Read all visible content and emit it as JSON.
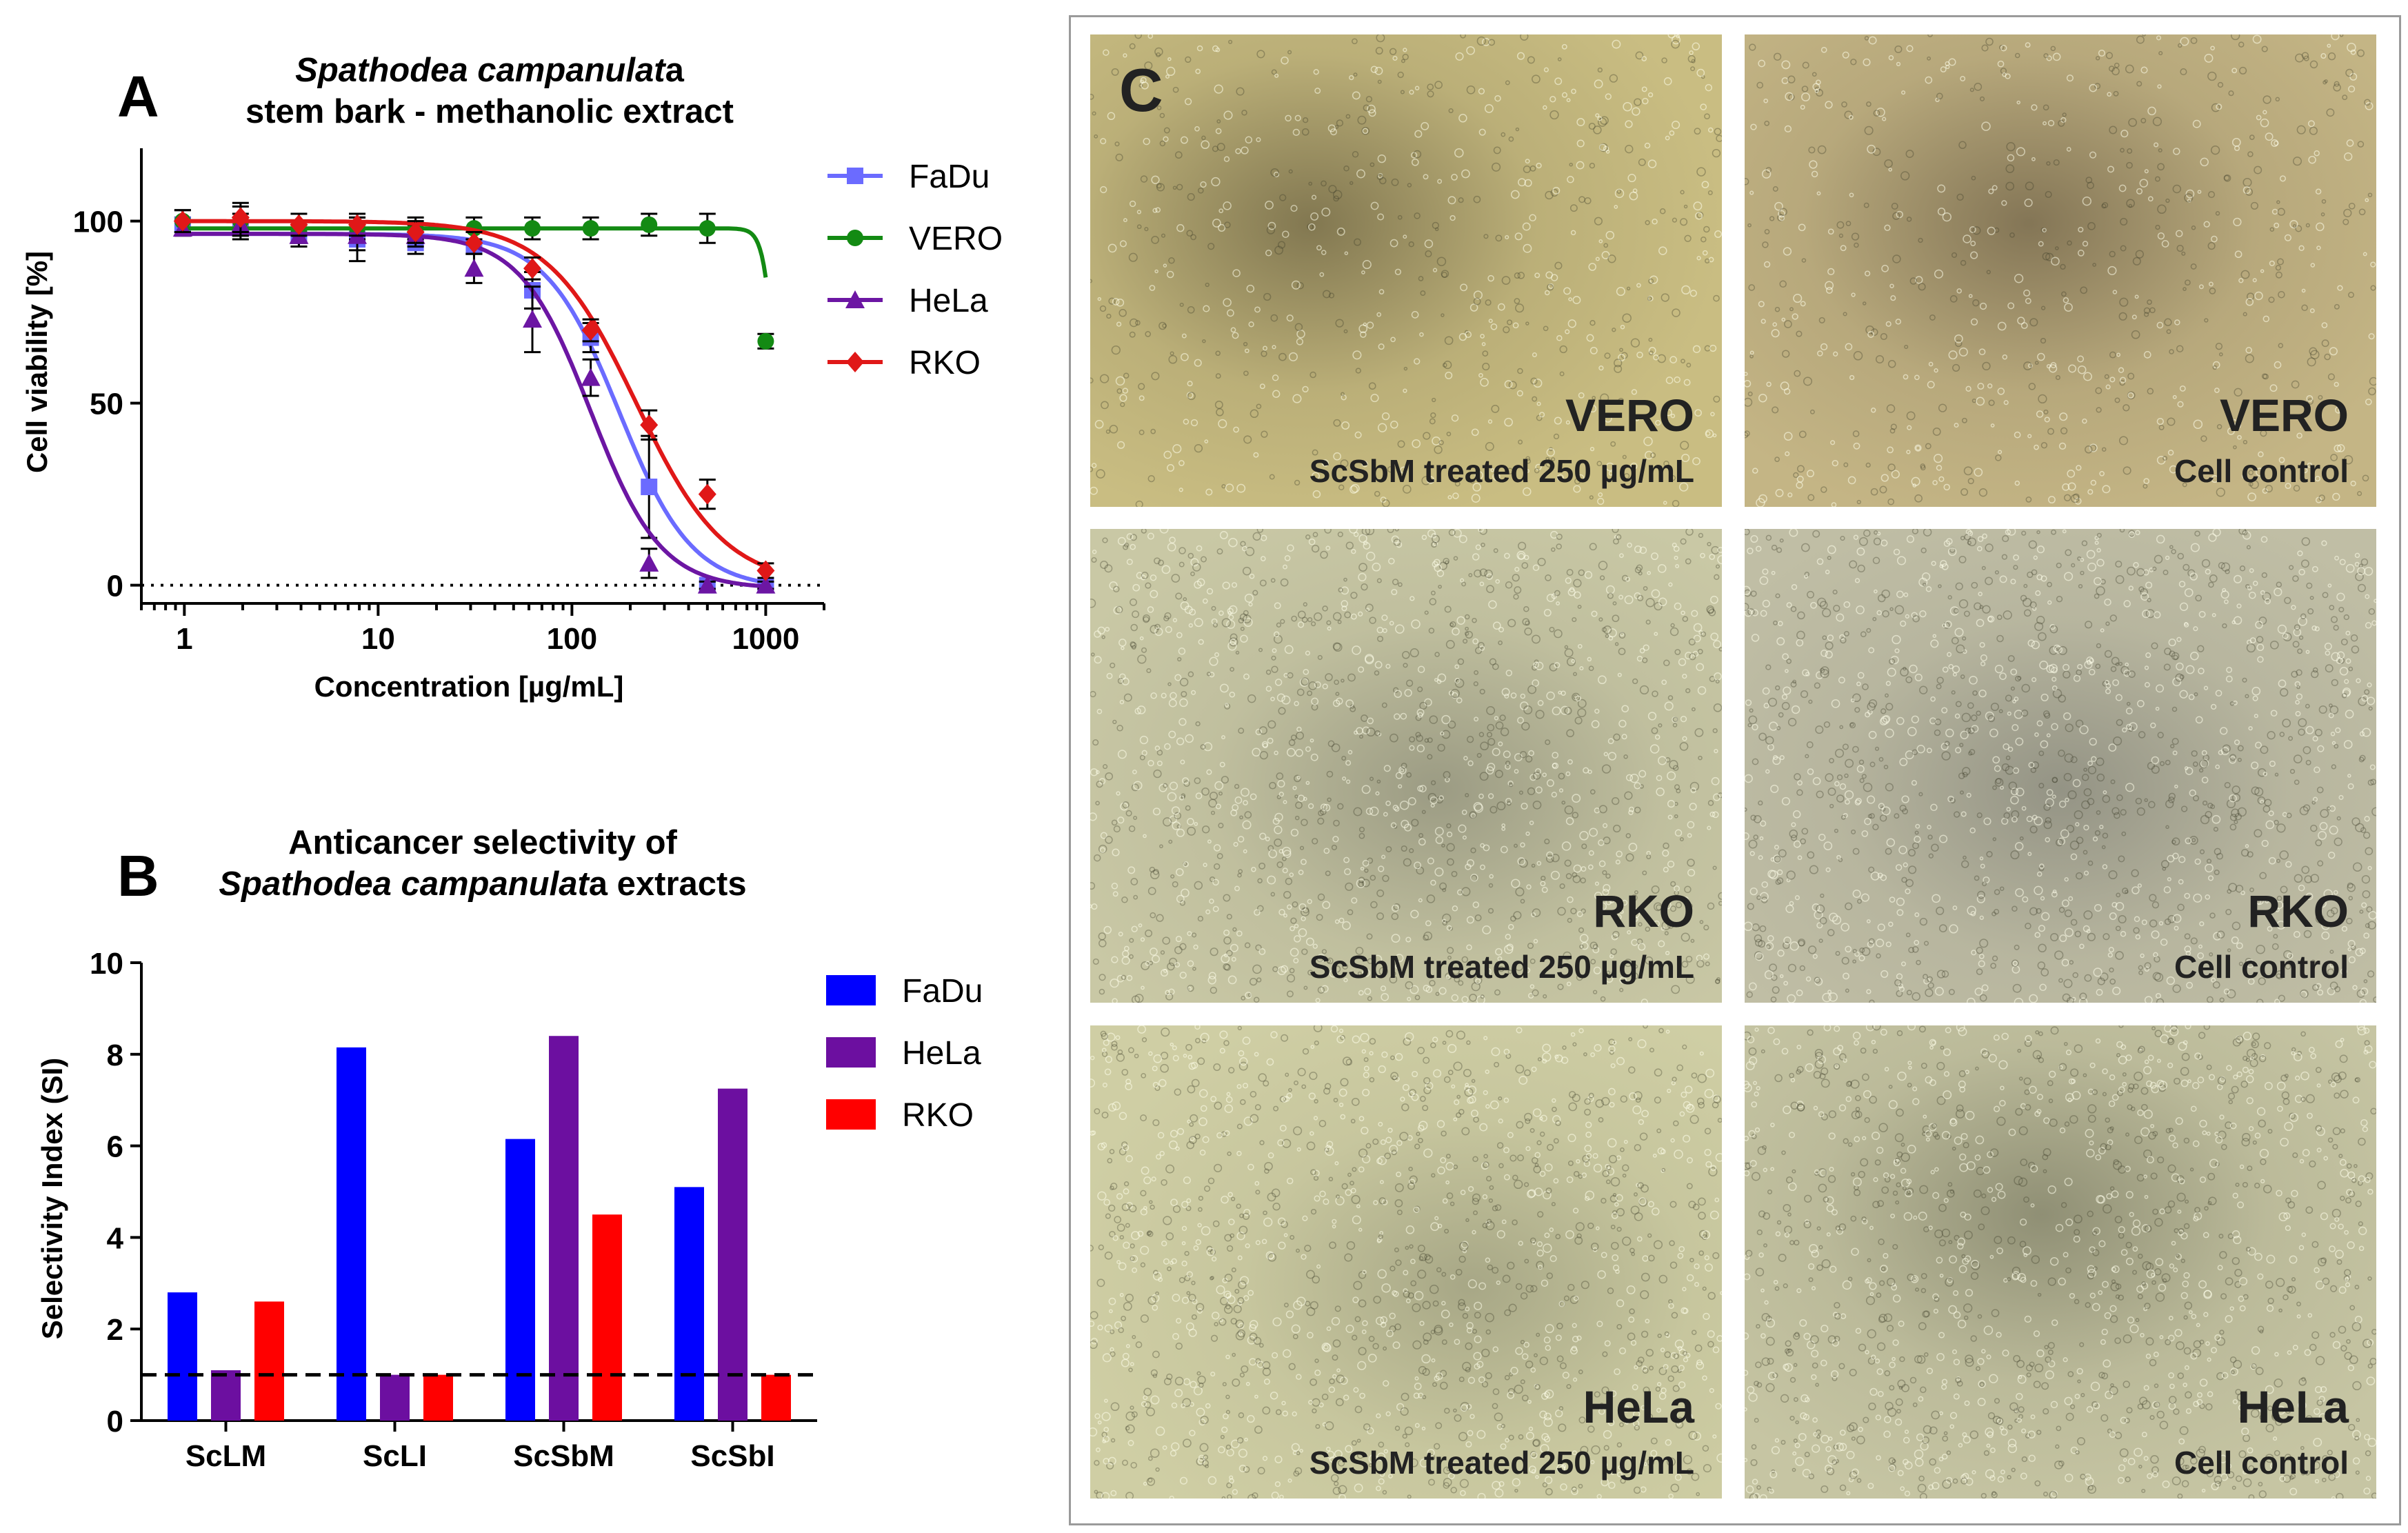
{
  "panel_a": {
    "letter": "A",
    "title_italic": "Spathodea campanulat",
    "title_tail": "a",
    "title_line2": "stem bark - methanolic extract"
  },
  "panel_b": {
    "letter": "B",
    "title_line1": "Anticancer selectivity of",
    "title_italic": "Spathodea campanulat",
    "title_tail": "a extracts"
  },
  "panel_c": {
    "letter": "C"
  },
  "chart_data": [
    {
      "type": "line",
      "xlabel": "Concentration [µg/mL]",
      "ylabel": "Cell viability [%]",
      "x_scale": "log",
      "xlim": [
        0.6,
        2000
      ],
      "ylim": [
        -5,
        120
      ],
      "x_ticks": [
        1,
        10,
        100,
        1000
      ],
      "x_tick_labels": [
        "1",
        "10",
        "100",
        "1000"
      ],
      "y_ticks": [
        0,
        50,
        100
      ],
      "y_tick_labels": [
        "0",
        "50",
        "100"
      ],
      "reference_line": 0,
      "legend_position": "right",
      "x": [
        0.98,
        1.95,
        3.9,
        7.8,
        15.6,
        31.25,
        62.5,
        125,
        250,
        500,
        1000
      ],
      "series": [
        {
          "name": "FaDu",
          "color": "#6b6bff",
          "marker": "square",
          "values": [
            99,
            98,
            96,
            95,
            94,
            93,
            81,
            68,
            27,
            0,
            0
          ],
          "errors": [
            2,
            3,
            3,
            6,
            3,
            2,
            5,
            4,
            14,
            1,
            1
          ],
          "fit": {
            "top": 96.5,
            "bottom": -1,
            "ec50": 175,
            "hill": 2.3
          }
        },
        {
          "name": "VERO",
          "color": "#138a13",
          "marker": "circle",
          "values": [
            100,
            100,
            97,
            98,
            98,
            98,
            98,
            98,
            99,
            98,
            67
          ],
          "errors": [
            3,
            4,
            3,
            3,
            3,
            3,
            3,
            3,
            3,
            4,
            2
          ],
          "fit": {
            "top": 98,
            "bottom": 0,
            "ec50": 1140,
            "hill": 14
          }
        },
        {
          "name": "HeLa",
          "color": "#6c16a3",
          "marker": "triangle",
          "values": [
            98,
            99,
            96,
            96,
            96,
            87,
            73,
            57,
            6,
            0,
            0
          ],
          "errors": [
            2,
            3,
            3,
            4,
            3,
            4,
            9,
            5,
            4,
            1,
            1
          ],
          "fit": {
            "top": 96.5,
            "bottom": -1,
            "ec50": 125,
            "hill": 2.4
          }
        },
        {
          "name": "RKO",
          "color": "#e01818",
          "marker": "diamond",
          "values": [
            100,
            101,
            99,
            99,
            97,
            94,
            87,
            70,
            44,
            25,
            4
          ],
          "errors": [
            3,
            4,
            3,
            3,
            3,
            3,
            3,
            3,
            4,
            4,
            2
          ],
          "fit": {
            "top": 100,
            "bottom": 0,
            "ec50": 215,
            "hill": 1.9
          }
        }
      ]
    },
    {
      "type": "bar",
      "ylabel": "Selectivity Index (SI)",
      "xlabel": "",
      "categories": [
        "ScLM",
        "ScLI",
        "ScSbM",
        "ScSbI"
      ],
      "ylim": [
        0,
        10
      ],
      "y_ticks": [
        0,
        2,
        4,
        6,
        8,
        10
      ],
      "y_tick_labels": [
        "0",
        "2",
        "4",
        "6",
        "8",
        "10"
      ],
      "reference_line": 1,
      "legend_position": "right",
      "series": [
        {
          "name": "FaDu",
          "color": "#0000ff",
          "values": [
            2.8,
            8.15,
            6.15,
            5.1
          ]
        },
        {
          "name": "HeLa",
          "color": "#6c0fa0",
          "values": [
            1.1,
            1.0,
            8.4,
            7.25
          ]
        },
        {
          "name": "RKO",
          "color": "#ff0000",
          "values": [
            2.6,
            1.0,
            4.5,
            1.0
          ]
        }
      ]
    }
  ],
  "micrographs": [
    {
      "cell": "VERO",
      "label": "ScSbM treated 250 µg/mL",
      "color": "#c9bd82",
      "dark": "#6a6040"
    },
    {
      "cell": "VERO",
      "label": "Cell control",
      "color": "#c4b585",
      "dark": "#6e6046"
    },
    {
      "cell": "RKO",
      "label": "ScSbM treated 250 µg/mL",
      "color": "#c9c8a5",
      "dark": "#8c8c78"
    },
    {
      "cell": "RKO",
      "label": "Cell control",
      "color": "#c0bea5",
      "dark": "#85857a"
    },
    {
      "cell": "HeLa",
      "label": "ScSbM treated 250 µg/mL",
      "color": "#cfcea4",
      "dark": "#9a9a7c"
    },
    {
      "cell": "HeLa",
      "label": "Cell control",
      "color": "#c6c5a3",
      "dark": "#7d7d65"
    }
  ]
}
